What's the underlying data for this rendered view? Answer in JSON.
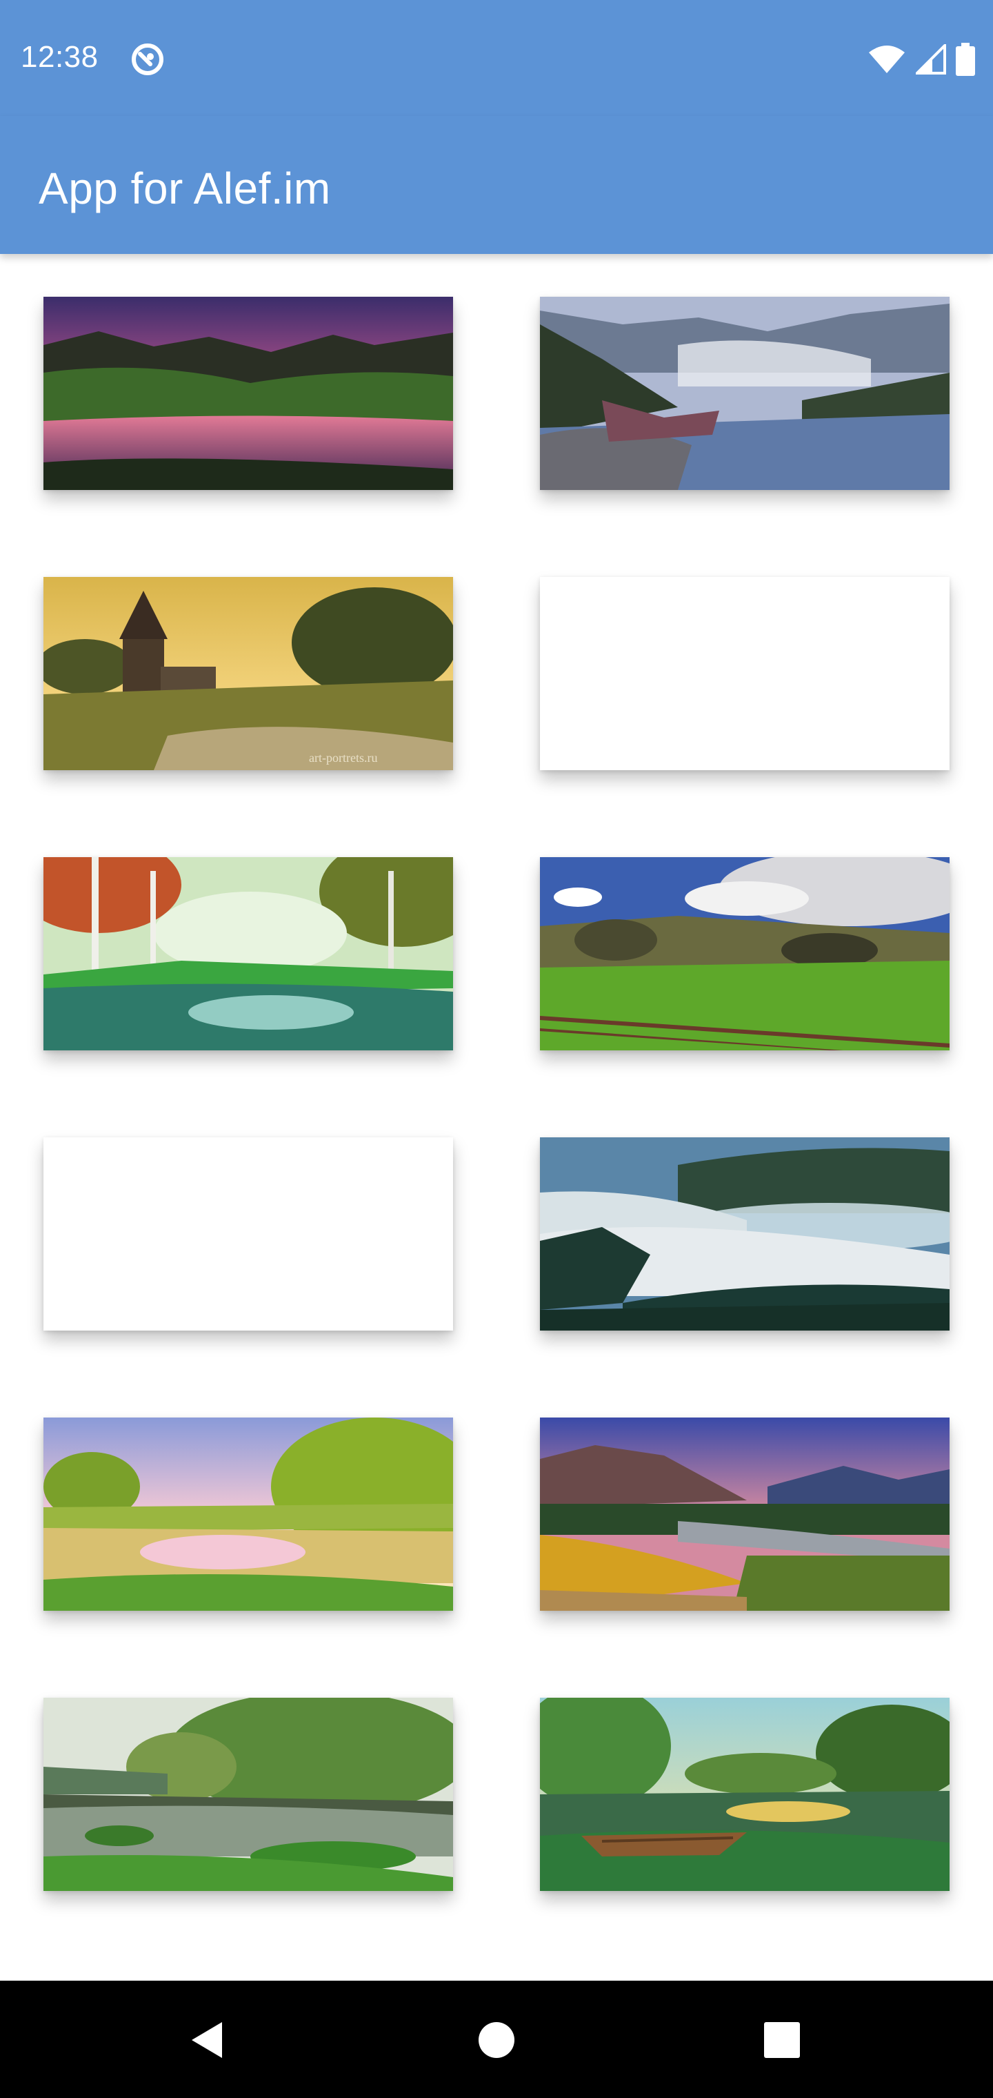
{
  "status_bar": {
    "time": "12:38",
    "icons": [
      "app-notification-icon",
      "wifi-icon",
      "cell-signal-icon",
      "battery-icon"
    ]
  },
  "app_bar": {
    "title": "App for Alef.im",
    "background_color": "#5c93d6"
  },
  "gallery": {
    "images": [
      {
        "name": "purple-sunset-lake",
        "loaded": true
      },
      {
        "name": "misty-mountain-river",
        "loaded": true
      },
      {
        "name": "church-meadow-painting",
        "loaded": true,
        "watermark": "art-portrets.ru"
      },
      {
        "name": "empty-placeholder",
        "loaded": false
      },
      {
        "name": "birch-forest-pond",
        "loaded": true
      },
      {
        "name": "green-field-fence",
        "loaded": true
      },
      {
        "name": "empty-placeholder",
        "loaded": false
      },
      {
        "name": "frosty-hills-forest",
        "loaded": true
      },
      {
        "name": "golden-pond-painting",
        "loaded": true
      },
      {
        "name": "mountain-valley-autumn",
        "loaded": true
      },
      {
        "name": "summer-river-trees",
        "loaded": true
      },
      {
        "name": "lily-pond-boat",
        "loaded": true
      }
    ]
  },
  "nav_bar": {
    "icons": [
      "back-icon",
      "home-icon",
      "recent-apps-icon"
    ]
  }
}
